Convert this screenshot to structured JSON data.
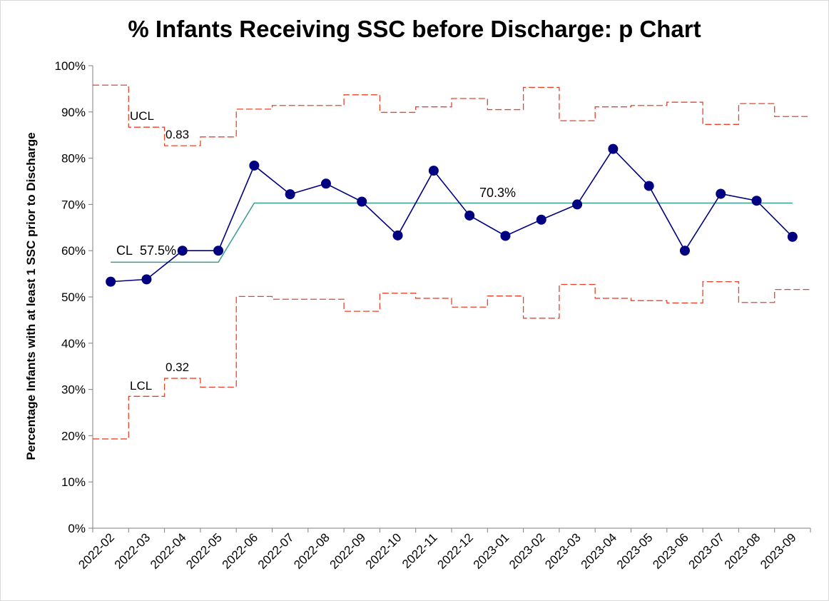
{
  "chart_data": {
    "type": "line",
    "title": "% Infants Receiving SSC before Discharge: p Chart",
    "xlabel": "",
    "ylabel": "Percentage Infants with at least 1 SSC prior to Discharge",
    "ylim": [
      0,
      1
    ],
    "y_ticks": [
      "0%",
      "10%",
      "20%",
      "30%",
      "40%",
      "50%",
      "60%",
      "70%",
      "80%",
      "90%",
      "100%"
    ],
    "categories": [
      "2022-02",
      "2022-03",
      "2022-04",
      "2022-05",
      "2022-06",
      "2022-07",
      "2022-08",
      "2022-09",
      "2022-10",
      "2022-11",
      "2022-12",
      "2023-01",
      "2023-02",
      "2023-03",
      "2023-04",
      "2023-05",
      "2023-06",
      "2023-07",
      "2023-08",
      "2023-09"
    ],
    "series": [
      {
        "role": "p",
        "values": [
          0.533,
          0.538,
          0.6,
          0.6,
          0.784,
          0.722,
          0.745,
          0.706,
          0.633,
          0.773,
          0.676,
          0.632,
          0.667,
          0.7,
          0.82,
          0.74,
          0.6,
          0.723,
          0.708,
          0.63
        ],
        "color": "#000080"
      },
      {
        "role": "CL",
        "values": [
          0.575,
          0.575,
          0.575,
          0.575,
          0.703,
          0.703,
          0.703,
          0.703,
          0.703,
          0.703,
          0.703,
          0.703,
          0.703,
          0.703,
          0.703,
          0.703,
          0.703,
          0.703,
          0.703,
          0.703
        ],
        "color": "#3a9a8f"
      },
      {
        "role": "UCL",
        "values": [
          0.958,
          0.867,
          0.827,
          0.846,
          0.906,
          0.914,
          0.914,
          0.937,
          0.899,
          0.911,
          0.929,
          0.905,
          0.953,
          0.881,
          0.911,
          0.914,
          0.921,
          0.873,
          0.918,
          0.89
        ],
        "color": "#e8432a"
      },
      {
        "role": "LCL",
        "values": [
          0.193,
          0.285,
          0.324,
          0.305,
          0.501,
          0.495,
          0.495,
          0.469,
          0.508,
          0.497,
          0.478,
          0.502,
          0.454,
          0.527,
          0.497,
          0.492,
          0.487,
          0.533,
          0.488,
          0.516
        ],
        "color": "#e8432a"
      }
    ],
    "annotations": {
      "ucl_label": "UCL",
      "ucl_value": "0.83",
      "lcl_label": "LCL",
      "lcl_value": "0.32",
      "cl_label": "CL",
      "cl_value_1": "57.5%",
      "cl_value_2": "70.3%"
    },
    "grid": false,
    "legend": "none"
  }
}
